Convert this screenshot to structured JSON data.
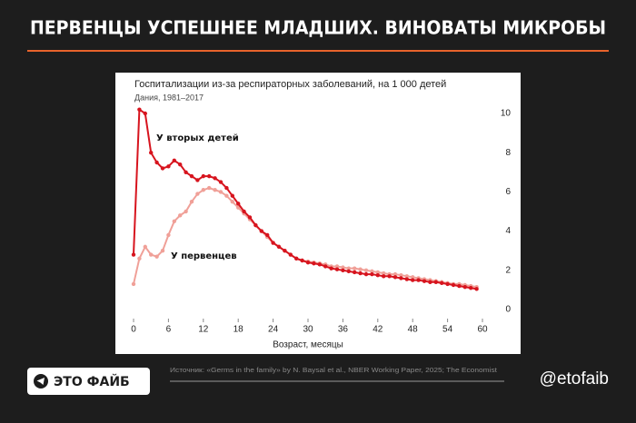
{
  "header": {
    "title": "ПЕРВЕНЦЫ УСПЕШНЕЕ МЛАДШИХ. ВИНОВАТЫ МИКРОБЫ"
  },
  "chart_data": {
    "type": "line",
    "title": "Госпитализации из-за респираторных заболеваний, на 1 000 детей",
    "subtitle": "Дания, 1981–2017",
    "x_label": "Возраст, месяцы",
    "x": [
      0,
      1,
      2,
      3,
      4,
      5,
      6,
      7,
      8,
      9,
      10,
      11,
      12,
      13,
      14,
      15,
      16,
      17,
      18,
      19,
      20,
      21,
      22,
      23,
      24,
      25,
      26,
      27,
      28,
      29,
      30,
      31,
      32,
      33,
      34,
      35,
      36,
      37,
      38,
      39,
      40,
      41,
      42,
      43,
      44,
      45,
      46,
      47,
      48,
      49,
      50,
      51,
      52,
      53,
      54,
      55,
      56,
      57,
      58,
      59
    ],
    "series": [
      {
        "name": "У первенцев",
        "color": "#f0a098",
        "values": [
          1.3,
          2.6,
          3.2,
          2.8,
          2.7,
          3.0,
          3.8,
          4.5,
          4.8,
          5.0,
          5.5,
          5.9,
          6.1,
          6.2,
          6.1,
          6.0,
          5.8,
          5.5,
          5.2,
          4.9,
          4.6,
          4.3,
          4.0,
          3.7,
          3.4,
          3.2,
          3.0,
          2.8,
          2.6,
          2.5,
          2.45,
          2.4,
          2.35,
          2.3,
          2.2,
          2.2,
          2.15,
          2.1,
          2.1,
          2.05,
          2.0,
          1.95,
          1.9,
          1.85,
          1.8,
          1.8,
          1.75,
          1.7,
          1.65,
          1.6,
          1.55,
          1.5,
          1.45,
          1.4,
          1.35,
          1.3,
          1.3,
          1.25,
          1.2,
          1.15
        ]
      },
      {
        "name": "У вторых детей",
        "color": "#d7141e",
        "values": [
          2.8,
          10.2,
          10.0,
          8.0,
          7.5,
          7.2,
          7.3,
          7.6,
          7.4,
          7.0,
          6.8,
          6.6,
          6.8,
          6.8,
          6.7,
          6.5,
          6.2,
          5.8,
          5.4,
          5.0,
          4.7,
          4.3,
          4.0,
          3.8,
          3.4,
          3.2,
          3.0,
          2.8,
          2.6,
          2.5,
          2.4,
          2.35,
          2.3,
          2.2,
          2.1,
          2.05,
          2.0,
          1.95,
          1.9,
          1.85,
          1.8,
          1.8,
          1.75,
          1.7,
          1.7,
          1.65,
          1.6,
          1.55,
          1.5,
          1.5,
          1.45,
          1.4,
          1.4,
          1.35,
          1.3,
          1.25,
          1.2,
          1.15,
          1.1,
          1.05
        ]
      }
    ],
    "xlim": [
      0,
      60
    ],
    "xticks": [
      0,
      6,
      12,
      18,
      24,
      30,
      36,
      42,
      48,
      54,
      60
    ],
    "ylim": [
      0,
      10
    ],
    "yticks": [
      0,
      2,
      4,
      6,
      8,
      10
    ],
    "y_axis_side": "right",
    "grid": false
  },
  "footer": {
    "brand": "ЭТО ФАЙБ",
    "source": "Источник: «Germs in the family» by N. Baysal et al., NBER Working Paper, 2025; The Economist",
    "handle": "@etofaib"
  }
}
